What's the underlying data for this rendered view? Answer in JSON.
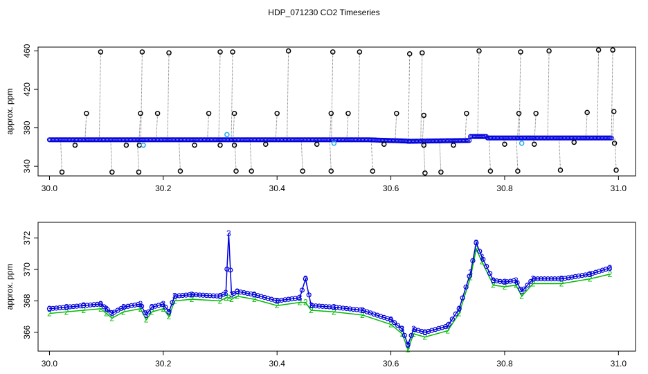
{
  "page_title": "HDP_071230  CO2 Timeseries",
  "chart_data": [
    {
      "type": "scatter",
      "ylabel": "approx. ppm",
      "xlim": [
        29.98,
        31.03
      ],
      "ylim": [
        330,
        464
      ],
      "x_ticks": [
        30.0,
        30.2,
        30.4,
        30.6,
        30.8,
        31.0
      ],
      "x_tick_labels": [
        "30.0",
        "30.2",
        "30.4",
        "30.6",
        "30.8",
        "31.0"
      ],
      "y_ticks": [
        340,
        380,
        420,
        460
      ],
      "y_tick_labels": [
        "340",
        "380",
        "420",
        "460"
      ],
      "grid": false,
      "colors": {
        "baseline": "#0000dd",
        "spike": "#000000",
        "drop": "#777777",
        "highlight": "#22aaee"
      },
      "spikes_high": [
        [
          30.065,
          395
        ],
        [
          30.09,
          459
        ],
        [
          30.16,
          395
        ],
        [
          30.163,
          459
        ],
        [
          30.19,
          395
        ],
        [
          30.21,
          458
        ],
        [
          30.28,
          395
        ],
        [
          30.3,
          459
        ],
        [
          30.322,
          459
        ],
        [
          30.325,
          395
        ],
        [
          30.4,
          395
        ],
        [
          30.42,
          460
        ],
        [
          30.495,
          395
        ],
        [
          30.498,
          459
        ],
        [
          30.525,
          395
        ],
        [
          30.545,
          459
        ],
        [
          30.61,
          395
        ],
        [
          30.633,
          457
        ],
        [
          30.655,
          458
        ],
        [
          30.658,
          393
        ],
        [
          30.733,
          395
        ],
        [
          30.755,
          460
        ],
        [
          30.825,
          395
        ],
        [
          30.828,
          459
        ],
        [
          30.855,
          395
        ],
        [
          30.878,
          460
        ],
        [
          30.945,
          396
        ],
        [
          30.965,
          461
        ],
        [
          30.99,
          461
        ],
        [
          30.992,
          397
        ]
      ],
      "spikes_low": [
        [
          30.022,
          334
        ],
        [
          30.045,
          362
        ],
        [
          30.11,
          334
        ],
        [
          30.135,
          362
        ],
        [
          30.157,
          334
        ],
        [
          30.158,
          362
        ],
        [
          30.23,
          335
        ],
        [
          30.255,
          362
        ],
        [
          30.3,
          362
        ],
        [
          30.325,
          362
        ],
        [
          30.328,
          335
        ],
        [
          30.355,
          335
        ],
        [
          30.38,
          363
        ],
        [
          30.445,
          335
        ],
        [
          30.47,
          363
        ],
        [
          30.495,
          335
        ],
        [
          30.588,
          363
        ],
        [
          30.568,
          335
        ],
        [
          30.658,
          362
        ],
        [
          30.66,
          333
        ],
        [
          30.688,
          334
        ],
        [
          30.71,
          362
        ],
        [
          30.775,
          335
        ],
        [
          30.8,
          363
        ],
        [
          30.823,
          335
        ],
        [
          30.852,
          363
        ],
        [
          30.898,
          336
        ],
        [
          30.922,
          365
        ],
        [
          30.993,
          364
        ],
        [
          30.996,
          336
        ]
      ],
      "highlight_points": [
        [
          30.165,
          362
        ],
        [
          30.312,
          373
        ],
        [
          30.5,
          364
        ],
        [
          30.83,
          364
        ]
      ]
    },
    {
      "type": "line",
      "ylabel": "approx. ppm",
      "xlim": [
        29.98,
        31.03
      ],
      "ylim": [
        364.8,
        373
      ],
      "x_ticks": [
        30.0,
        30.2,
        30.4,
        30.6,
        30.8,
        31.0
      ],
      "x_tick_labels": [
        "30.0",
        "30.2",
        "30.4",
        "30.6",
        "30.8",
        "31.0"
      ],
      "y_ticks": [
        366,
        368,
        370,
        372
      ],
      "y_tick_labels": [
        "366",
        "368",
        "370",
        "372"
      ],
      "grid": false,
      "point_markers": {
        "series_3": "3",
        "series_2": "2"
      },
      "colors": {
        "series_3": "#0000dd",
        "series_2": "#00bb00",
        "markers_o": "#0000dd"
      },
      "series": [
        {
          "name": "3",
          "color": "#0000dd",
          "x": [
            30.0,
            30.03,
            30.06,
            30.09,
            30.1,
            30.11,
            30.13,
            30.16,
            30.17,
            30.18,
            30.2,
            30.21,
            30.22,
            30.25,
            30.3,
            30.31,
            30.315,
            30.32,
            30.33,
            30.36,
            30.4,
            30.44,
            30.45,
            30.46,
            30.5,
            30.55,
            30.6,
            30.62,
            30.63,
            30.64,
            30.66,
            30.7,
            30.72,
            30.74,
            30.75,
            30.76,
            30.78,
            30.8,
            30.82,
            30.83,
            30.85,
            30.9,
            30.95,
            30.985
          ],
          "y": [
            367.5,
            367.6,
            367.7,
            367.8,
            367.5,
            367.2,
            367.6,
            367.8,
            367.1,
            367.6,
            367.8,
            367.3,
            368.3,
            368.4,
            368.3,
            368.5,
            372.3,
            368.4,
            368.6,
            368.4,
            368.0,
            368.2,
            369.4,
            367.7,
            367.6,
            367.4,
            366.8,
            366.2,
            365.2,
            366.2,
            366.0,
            366.4,
            367.5,
            369.8,
            371.7,
            370.8,
            369.3,
            369.2,
            369.3,
            368.6,
            369.4,
            369.4,
            369.7,
            370.1
          ]
        },
        {
          "name": "2",
          "color": "#00bb00",
          "x": [
            30.0,
            30.03,
            30.06,
            30.09,
            30.1,
            30.11,
            30.13,
            30.16,
            30.17,
            30.18,
            30.2,
            30.21,
            30.22,
            30.25,
            30.3,
            30.31,
            30.315,
            30.32,
            30.33,
            30.36,
            30.4,
            30.44,
            30.45,
            30.46,
            30.5,
            30.55,
            30.6,
            30.62,
            30.63,
            30.64,
            30.66,
            30.7,
            30.72,
            30.74,
            30.75,
            30.76,
            30.78,
            30.8,
            30.82,
            30.83,
            30.85,
            30.9,
            30.95,
            30.985
          ],
          "y": [
            367.2,
            367.3,
            367.4,
            367.5,
            367.2,
            366.9,
            367.3,
            367.5,
            366.8,
            367.3,
            367.5,
            367.0,
            368.0,
            368.1,
            368.0,
            368.2,
            368.2,
            368.1,
            368.3,
            368.1,
            367.7,
            367.9,
            367.9,
            367.4,
            367.3,
            367.1,
            366.5,
            365.9,
            364.9,
            365.9,
            365.7,
            366.1,
            367.2,
            369.5,
            371.3,
            370.5,
            369.0,
            368.9,
            369.0,
            368.3,
            369.1,
            369.1,
            369.4,
            369.7
          ]
        }
      ]
    }
  ]
}
